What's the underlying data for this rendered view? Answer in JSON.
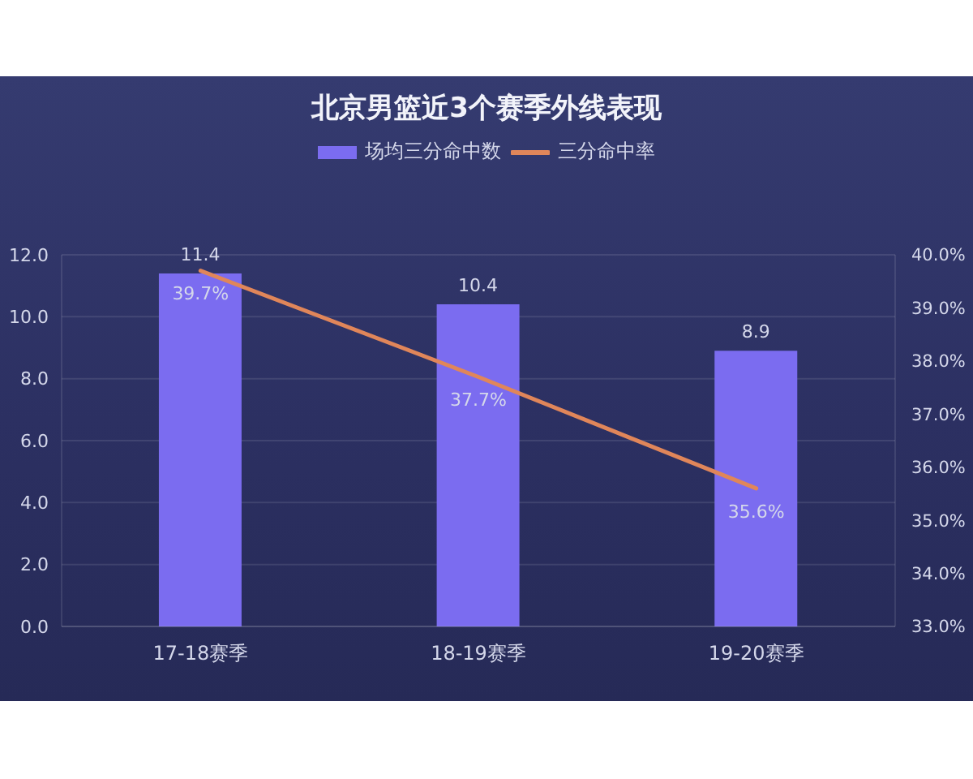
{
  "chart_data": {
    "type": "bar",
    "title": "北京男篮近3个赛季外线表现",
    "categories": [
      "17-18赛季",
      "18-19赛季",
      "19-20赛季"
    ],
    "series": [
      {
        "name": "场均三分命中数",
        "color": "#7b6cf0",
        "values": [
          11.4,
          10.4,
          8.9
        ],
        "value_labels": [
          "11.4",
          "10.4",
          "8.9"
        ]
      },
      {
        "name": "三分命中率",
        "type": "line",
        "axis": "y2",
        "color": "#e0865a",
        "values": [
          39.7,
          37.7,
          35.6
        ],
        "value_labels": [
          "39.7%",
          "37.7%",
          "35.6%"
        ]
      }
    ],
    "ylim": [
      0,
      12
    ],
    "yticks": [
      {
        "value": 0,
        "label": "0.0"
      },
      {
        "value": 2,
        "label": "2.0"
      },
      {
        "value": 4,
        "label": "4.0"
      },
      {
        "value": 6,
        "label": "6.0"
      },
      {
        "value": 8,
        "label": "8.0"
      },
      {
        "value": 10,
        "label": "10.0"
      },
      {
        "value": 12,
        "label": "12.0"
      }
    ],
    "y2lim": [
      33,
      40
    ],
    "y2ticks": [
      {
        "value": 33,
        "label": "33.0%"
      },
      {
        "value": 34,
        "label": "34.0%"
      },
      {
        "value": 35,
        "label": "35.0%"
      },
      {
        "value": 36,
        "label": "36.0%"
      },
      {
        "value": 37,
        "label": "37.0%"
      },
      {
        "value": 38,
        "label": "38.0%"
      },
      {
        "value": 39,
        "label": "39.0%"
      },
      {
        "value": 40,
        "label": "40.0%"
      }
    ],
    "grid": "y",
    "legend": "top",
    "marker": "none"
  }
}
